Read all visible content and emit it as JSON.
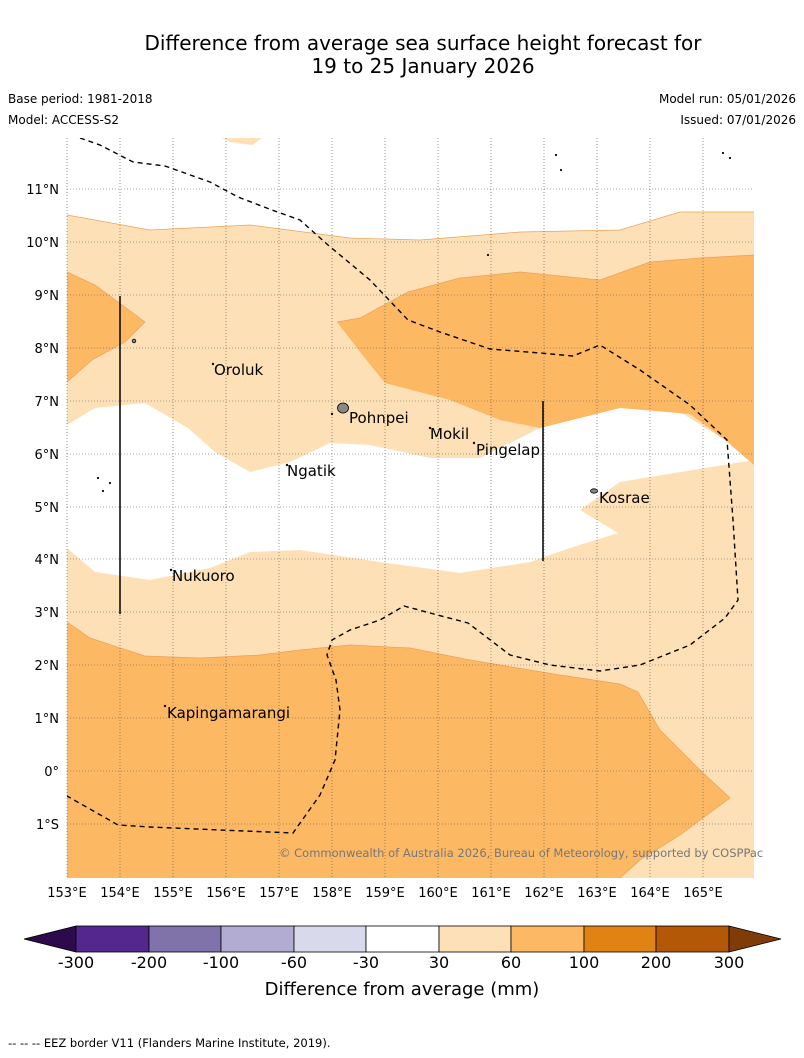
{
  "title": {
    "line1": "Difference from average sea surface height forecast for",
    "line2": "19 to 25 January 2026"
  },
  "meta": {
    "base_period": "Base period: 1981-2018",
    "model": "Model: ACCESS-S2",
    "model_run": "Model run: 05/01/2026",
    "issued": "Issued: 07/01/2026"
  },
  "map": {
    "lat_labels": [
      "11°N",
      "10°N",
      "9°N",
      "8°N",
      "7°N",
      "6°N",
      "5°N",
      "4°N",
      "3°N",
      "2°N",
      "1°N",
      "0°",
      "1°S"
    ],
    "lon_labels": [
      "153°E",
      "154°E",
      "155°E",
      "156°E",
      "157°E",
      "158°E",
      "159°E",
      "160°E",
      "161°E",
      "162°E",
      "163°E",
      "164°E",
      "165°E"
    ],
    "places": [
      "Oroluk",
      "Pohnpei",
      "Mokil",
      "Pingelap",
      "Ngatik",
      "Kosrae",
      "Nukuoro",
      "Kapingamarangi"
    ],
    "copyright": "© Commonwealth of Australia 2026, Bureau of Meteorology, supported by COSPPac"
  },
  "colorbar": {
    "ticks": [
      "-300",
      "-200",
      "-100",
      "-60",
      "-30",
      "30",
      "60",
      "100",
      "200",
      "300"
    ],
    "colors": [
      "#2d0a4b",
      "#54278f",
      "#8073ac",
      "#b2abd2",
      "#d8daeb",
      "#ffffff",
      "#fee0b6",
      "#fdb863",
      "#e08214",
      "#b35806",
      "#7f3b08"
    ],
    "title": "Difference from average (mm)"
  },
  "footer": "--  --  -- EEZ border V11 (Flanders Marine Institute, 2019)."
}
